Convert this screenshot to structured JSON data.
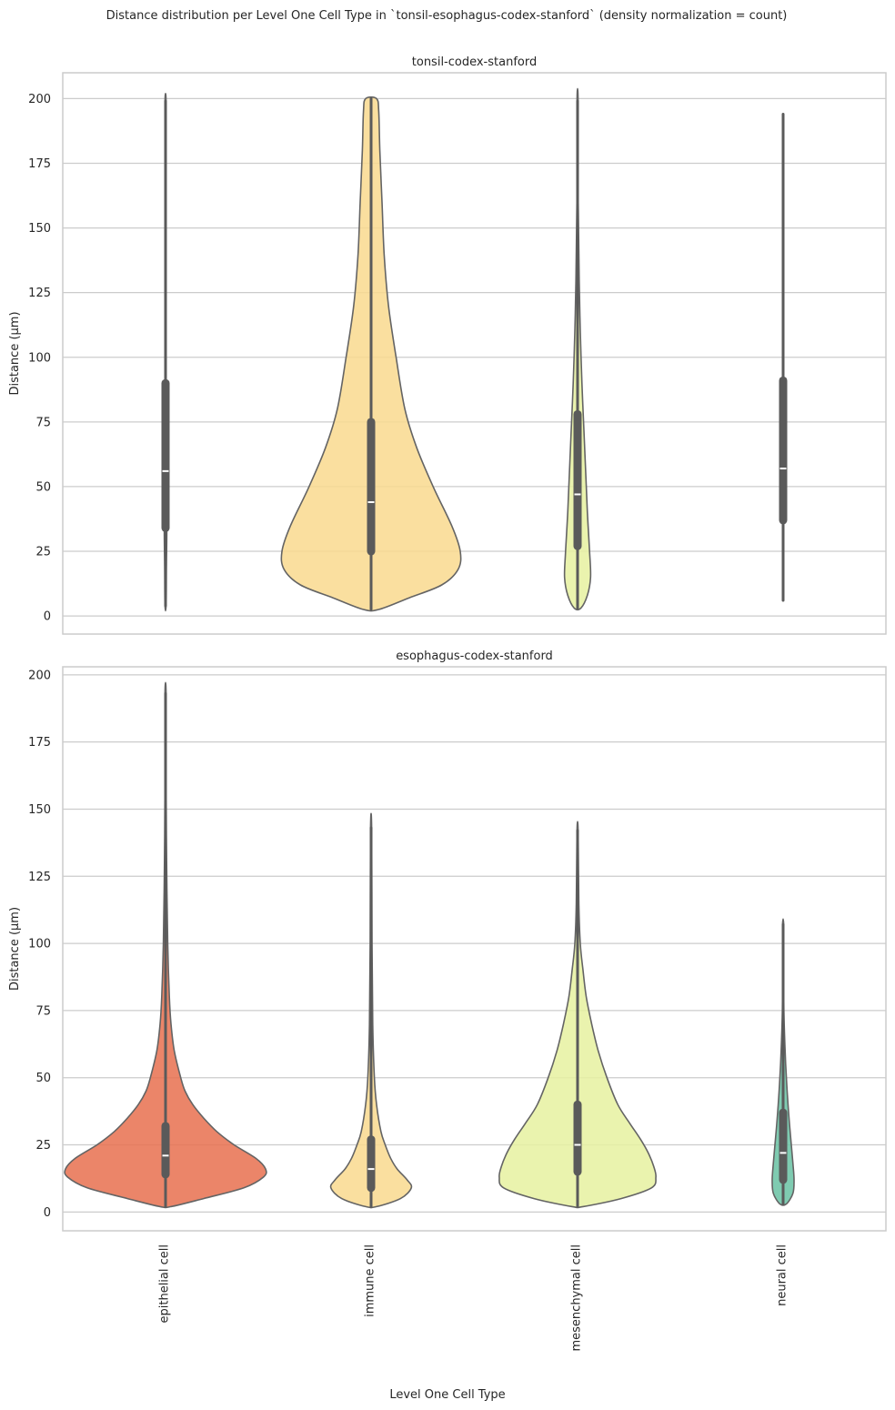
{
  "chart_data": {
    "type": "violin",
    "title": "Distance distribution per Level One Cell Type in `tonsil-esophagus-codex-stanford` (density normalization = count)",
    "xlabel": "Level One Cell Type",
    "ylabel": "Distance (µm)",
    "categories": [
      "epithelial cell",
      "immune cell",
      "mesenchymal cell",
      "neural cell"
    ],
    "colors": {
      "epithelial cell": "#e8704f",
      "immune cell": "#f9d98e",
      "mesenchymal cell": "#e6f1a0",
      "neural cell": "#68c2a3"
    },
    "yticks": [
      0,
      25,
      50,
      75,
      100,
      125,
      150,
      175,
      200
    ],
    "panels": [
      {
        "title": "tonsil-codex-stanford",
        "ylim": [
          -7,
          210
        ],
        "violins": [
          {
            "category": "epithelial cell",
            "min": 4,
            "max": 199,
            "q1": 34,
            "median": 56,
            "q3": 90,
            "profile": [
              [
                4,
                0.002
              ],
              [
                20,
                0.008
              ],
              [
                33,
                0.012
              ],
              [
                45,
                0.01
              ],
              [
                60,
                0.008
              ],
              [
                90,
                0.005
              ],
              [
                130,
                0.003
              ],
              [
                175,
                0.002
              ],
              [
                199,
                0.001
              ]
            ]
          },
          {
            "category": "immune cell",
            "min": 2.5,
            "max": 200,
            "q1": 25,
            "median": 44,
            "q3": 75,
            "profile": [
              [
                2.5,
                0.07
              ],
              [
                7,
                0.35
              ],
              [
                12,
                0.65
              ],
              [
                18,
                0.8
              ],
              [
                25,
                0.82
              ],
              [
                35,
                0.74
              ],
              [
                50,
                0.57
              ],
              [
                65,
                0.42
              ],
              [
                80,
                0.31
              ],
              [
                100,
                0.23
              ],
              [
                120,
                0.16
              ],
              [
                140,
                0.12
              ],
              [
                160,
                0.1
              ],
              [
                180,
                0.08
              ],
              [
                195,
                0.07
              ],
              [
                200,
                0.05
              ]
            ]
          },
          {
            "category": "mesenchymal cell",
            "min": 3,
            "max": 199,
            "q1": 27,
            "median": 47,
            "q3": 78,
            "profile": [
              [
                3,
                0.03
              ],
              [
                8,
                0.09
              ],
              [
                15,
                0.12
              ],
              [
                25,
                0.11
              ],
              [
                40,
                0.09
              ],
              [
                55,
                0.075
              ],
              [
                70,
                0.06
              ],
              [
                90,
                0.04
              ],
              [
                110,
                0.025
              ],
              [
                130,
                0.015
              ],
              [
                160,
                0.006
              ],
              [
                199,
                0.002
              ]
            ]
          },
          {
            "category": "neural cell",
            "min": 6,
            "max": 194,
            "q1": 37,
            "median": 57,
            "q3": 91,
            "profile": [
              [
                6,
                0.0
              ],
              [
                194,
                0.0
              ]
            ]
          }
        ]
      },
      {
        "title": "esophagus-codex-stanford",
        "ylim": [
          -7,
          203
        ],
        "violins": [
          {
            "category": "epithelial cell",
            "min": 2,
            "max": 193,
            "q1": 14,
            "median": 21,
            "q3": 32,
            "profile": [
              [
                2,
                0.05
              ],
              [
                5,
                0.35
              ],
              [
                9,
                0.72
              ],
              [
                13,
                0.9
              ],
              [
                16,
                0.92
              ],
              [
                20,
                0.83
              ],
              [
                25,
                0.63
              ],
              [
                30,
                0.47
              ],
              [
                35,
                0.35
              ],
              [
                40,
                0.25
              ],
              [
                45,
                0.18
              ],
              [
                50,
                0.14
              ],
              [
                60,
                0.08
              ],
              [
                70,
                0.05
              ],
              [
                80,
                0.035
              ],
              [
                100,
                0.02
              ],
              [
                130,
                0.01
              ],
              [
                160,
                0.005
              ],
              [
                193,
                0.002
              ]
            ]
          },
          {
            "category": "immune cell",
            "min": 2,
            "max": 143,
            "q1": 9,
            "median": 16,
            "q3": 27,
            "profile": [
              [
                2,
                0.05
              ],
              [
                5,
                0.27
              ],
              [
                9,
                0.37
              ],
              [
                12,
                0.33
              ],
              [
                16,
                0.24
              ],
              [
                20,
                0.18
              ],
              [
                25,
                0.13
              ],
              [
                30,
                0.09
              ],
              [
                40,
                0.05
              ],
              [
                50,
                0.03
              ],
              [
                70,
                0.015
              ],
              [
                100,
                0.008
              ],
              [
                143,
                0.003
              ]
            ]
          },
          {
            "category": "mesenchymal cell",
            "min": 2,
            "max": 142,
            "q1": 15,
            "median": 25,
            "q3": 40,
            "profile": [
              [
                2,
                0.05
              ],
              [
                5,
                0.4
              ],
              [
                9,
                0.68
              ],
              [
                13,
                0.72
              ],
              [
                17,
                0.7
              ],
              [
                22,
                0.65
              ],
              [
                27,
                0.58
              ],
              [
                33,
                0.48
              ],
              [
                40,
                0.37
              ],
              [
                50,
                0.27
              ],
              [
                60,
                0.19
              ],
              [
                70,
                0.13
              ],
              [
                80,
                0.08
              ],
              [
                90,
                0.05
              ],
              [
                100,
                0.025
              ],
              [
                115,
                0.012
              ],
              [
                142,
                0.004
              ]
            ]
          },
          {
            "category": "neural cell",
            "min": 3,
            "max": 107,
            "q1": 12,
            "median": 22,
            "q3": 37,
            "profile": [
              [
                3,
                0.03
              ],
              [
                7,
                0.09
              ],
              [
                12,
                0.1
              ],
              [
                18,
                0.09
              ],
              [
                25,
                0.075
              ],
              [
                32,
                0.06
              ],
              [
                40,
                0.045
              ],
              [
                50,
                0.03
              ],
              [
                60,
                0.018
              ],
              [
                75,
                0.007
              ],
              [
                90,
                0.002
              ],
              [
                107,
                0.001
              ]
            ]
          }
        ]
      }
    ]
  }
}
